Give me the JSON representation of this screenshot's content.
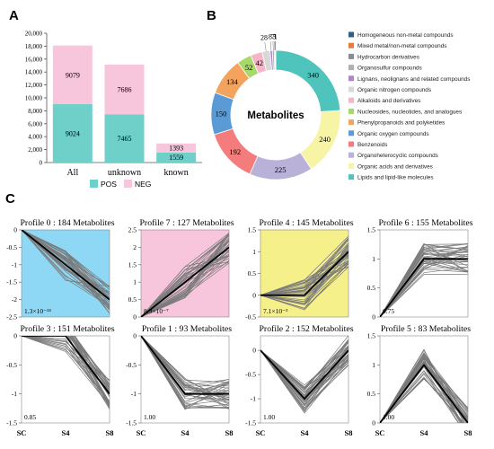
{
  "panel_labels": [
    "A",
    "B",
    "C"
  ],
  "chart_data": [
    {
      "type": "bar",
      "panel": "A",
      "stacked": true,
      "categories": [
        "All",
        "unknown",
        "known"
      ],
      "series": [
        {
          "name": "POS",
          "values": [
            9024,
            7465,
            1559
          ],
          "color": "#6fcfc9"
        },
        {
          "name": "NEG",
          "values": [
            9079,
            7686,
            1393
          ],
          "color": "#f8c6dc"
        }
      ],
      "yticks": [
        "0",
        "2,000",
        "4,000",
        "6,000",
        "8,000",
        "10,000",
        "12,000",
        "14,000",
        "16,000",
        "18,000",
        "20,000"
      ],
      "ylim": [
        0,
        20000
      ],
      "legend_position": "bottom",
      "grid": false
    },
    {
      "type": "pie",
      "panel": "B",
      "donut": true,
      "center_label": "Metabolites",
      "legend_position": "right",
      "slices": [
        {
          "name": "Homogeneous non-metal compounds",
          "value": 1,
          "color": "#2f5d8c"
        },
        {
          "name": "Mixed metal/non-metal compounds",
          "value": 1,
          "color": "#e87a3a"
        },
        {
          "name": "Hydrocarbon derivatives",
          "value": 3,
          "color": "#8c8c8c"
        },
        {
          "name": "Organosulfur compounds",
          "value": 7,
          "color": "#b0b0b0"
        },
        {
          "name": "Lignans, neolignans and related compounds",
          "value": 8,
          "color": "#b084c8"
        },
        {
          "name": "Organic nitrogen compounds",
          "value": 28,
          "color": "#d8d8d8"
        },
        {
          "name": "Alkaloids and derivatives",
          "value": 42,
          "color": "#f4b6c8"
        },
        {
          "name": "Nucleosides, nucleotides, and analogues",
          "value": 52,
          "color": "#a6d96a"
        },
        {
          "name": "Phenylpropanoids and polyketides",
          "value": 134,
          "color": "#f3a35e"
        },
        {
          "name": "Organic oxygen compounds",
          "value": 150,
          "color": "#5b9bd5"
        },
        {
          "name": "Benzenoids",
          "value": 192,
          "color": "#f47c7c"
        },
        {
          "name": "Organoheterocyclic compounds",
          "value": 225,
          "color": "#b9b1d8"
        },
        {
          "name": "Organic acids and derivatives",
          "value": 240,
          "color": "#f8f4a6"
        },
        {
          "name": "Lipids and lipid-like molecules",
          "value": 340,
          "color": "#4fc4bd"
        }
      ]
    },
    {
      "type": "line",
      "panel": "C",
      "x": [
        "SC",
        "S4",
        "S8"
      ],
      "profiles": [
        {
          "title": "Profile 0 : 184 Metabolites",
          "bg": "#8fd8f5",
          "mean": [
            0,
            -1.0,
            -2.0
          ],
          "yticks": [
            "0",
            "-0.5",
            "-1",
            "-1.5",
            "-2",
            "-2.5"
          ],
          "ylim": [
            -2.5,
            0
          ],
          "pvalue": "1.3×10⁻²⁴"
        },
        {
          "title": "Profile 7 : 127 Metabolites",
          "bg": "#f8c6dc",
          "mean": [
            0,
            1.0,
            2.0
          ],
          "yticks": [
            "0",
            "0.5",
            "1",
            "1.5",
            "2",
            "2.5"
          ],
          "ylim": [
            0,
            2.5
          ],
          "pvalue": "8.9×10⁻⁷"
        },
        {
          "title": "Profile 4 : 145 Metabolites",
          "bg": "#f6f08a",
          "mean": [
            0,
            0,
            1.0
          ],
          "yticks": [
            "-0.5",
            "0",
            "0.5",
            "1",
            "1.5"
          ],
          "ylim": [
            -0.5,
            1.5
          ],
          "pvalue": "7.1×10⁻³"
        },
        {
          "title": "Profile 6 : 155 Metabolites",
          "bg": "#ffffff",
          "mean": [
            0,
            1.0,
            1.0
          ],
          "yticks": [
            "0",
            "0.5",
            "1",
            "1.5"
          ],
          "ylim": [
            0,
            1.5
          ],
          "pvalue": "0.75"
        },
        {
          "title": "Profile 3 : 151 Metabolites",
          "bg": "#ffffff",
          "mean": [
            0,
            0,
            -1.0
          ],
          "yticks": [
            "0",
            "-0.5",
            "-1",
            "-1.5"
          ],
          "ylim": [
            -1.5,
            0
          ],
          "pvalue": "0.85"
        },
        {
          "title": "Profile 1 : 93 Metabolites",
          "bg": "#ffffff",
          "mean": [
            0,
            -1.0,
            -1.0
          ],
          "yticks": [
            "0",
            "-0.5",
            "-1",
            "-1.5"
          ],
          "ylim": [
            -1.5,
            0
          ],
          "pvalue": "1.00"
        },
        {
          "title": "Profile 2 : 152 Metabolites",
          "bg": "#ffffff",
          "mean": [
            0,
            -1.0,
            0
          ],
          "yticks": [
            "0",
            "-0.5",
            "-1",
            "-1.5"
          ],
          "ylim": [
            -1.5,
            0.3
          ],
          "pvalue": "1.00"
        },
        {
          "title": "Profile 5 : 83 Metabolites",
          "bg": "#ffffff",
          "mean": [
            0,
            1.0,
            0
          ],
          "yticks": [
            "0",
            "0.5",
            "1",
            "1.5"
          ],
          "ylim": [
            0,
            1.5
          ],
          "pvalue": "1.00"
        }
      ],
      "grid": false
    }
  ]
}
